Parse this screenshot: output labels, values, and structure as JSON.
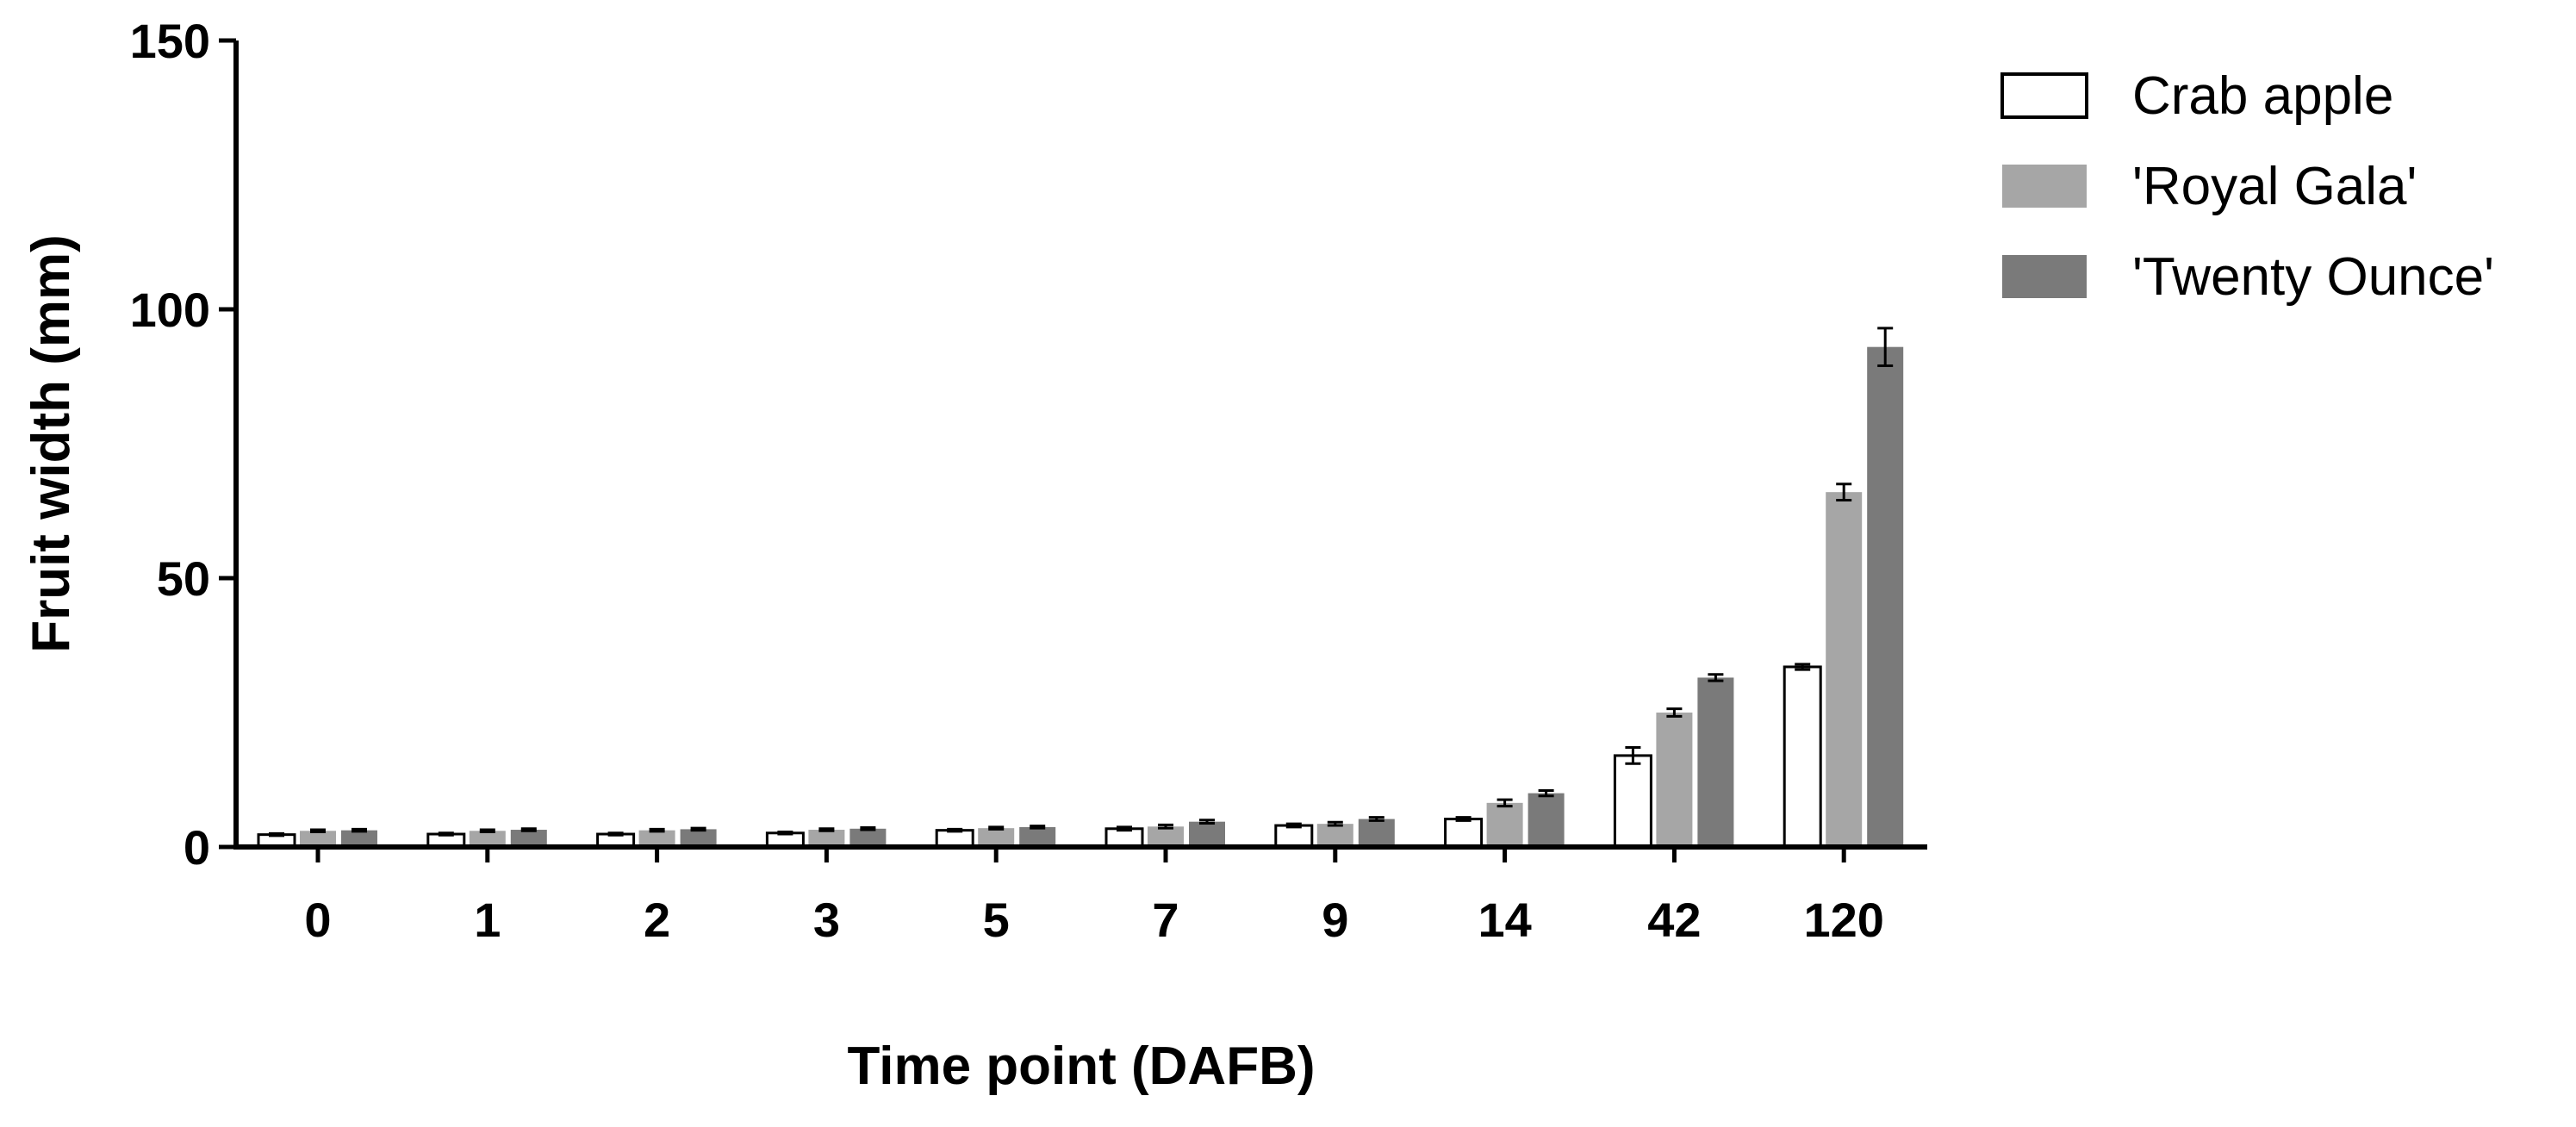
{
  "chart_data": {
    "type": "bar",
    "title": "",
    "xlabel": "Time point (DAFB)",
    "ylabel": "Fruit width (mm)",
    "ylim": [
      0,
      150
    ],
    "yticks": [
      "0",
      "50",
      "100",
      "150"
    ],
    "ytick_values": [
      0,
      50,
      100,
      150
    ],
    "grid": false,
    "legend_position": "top-right",
    "categories": [
      "0",
      "1",
      "2",
      "3",
      "5",
      "7",
      "9",
      "14",
      "42",
      "120"
    ],
    "series": [
      {
        "name": "Crab apple",
        "fill": "#ffffff",
        "stroke": "#000000",
        "values": [
          2.3,
          2.4,
          2.4,
          2.6,
          3.1,
          3.4,
          4.0,
          5.2,
          17.0,
          33.5
        ],
        "errors": [
          0.2,
          0.2,
          0.2,
          0.2,
          0.2,
          0.3,
          0.3,
          0.3,
          1.5,
          0.5
        ]
      },
      {
        "name": "'Royal Gala'",
        "fill": "#a6a6a6",
        "stroke": "#a6a6a6",
        "values": [
          3.0,
          3.0,
          3.1,
          3.2,
          3.5,
          3.8,
          4.3,
          8.2,
          25.0,
          66.0
        ],
        "errors": [
          0.2,
          0.2,
          0.2,
          0.2,
          0.2,
          0.3,
          0.3,
          0.6,
          0.7,
          1.5
        ]
      },
      {
        "name": "'Twenty Ounce'",
        "fill": "#7a7a7a",
        "stroke": "#7a7a7a",
        "values": [
          3.1,
          3.2,
          3.3,
          3.4,
          3.7,
          4.7,
          5.2,
          10.0,
          31.5,
          93.0
        ],
        "errors": [
          0.2,
          0.2,
          0.2,
          0.2,
          0.2,
          0.3,
          0.3,
          0.5,
          0.6,
          3.5
        ]
      }
    ]
  }
}
